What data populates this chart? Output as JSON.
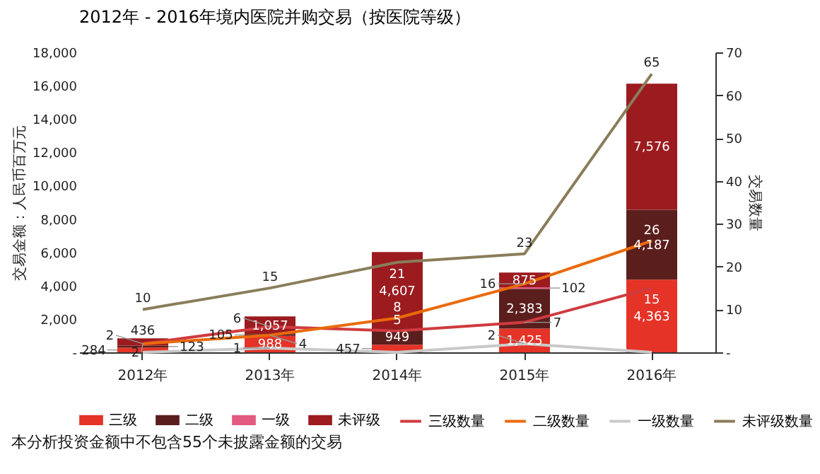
{
  "chart_data": {
    "type": "bar",
    "title": "2012年 - 2016年境内医院并购交易（按医院等级）",
    "ylabel": "交易金额：人民币百万元",
    "y2label": "交易数量",
    "categories": [
      "2012年",
      "2013年",
      "2014年",
      "2015年",
      "2016年"
    ],
    "stacked": true,
    "data_labels": true,
    "legend": "bottom",
    "ylim": [
      0,
      18000
    ],
    "yticks": [
      {
        "value": 0,
        "label": "-"
      },
      {
        "value": 2000,
        "label": "2,000"
      },
      {
        "value": 4000,
        "label": "4,000"
      },
      {
        "value": 6000,
        "label": "6,000"
      },
      {
        "value": 8000,
        "label": "8,000"
      },
      {
        "value": 10000,
        "label": "10,000"
      },
      {
        "value": 12000,
        "label": "12,000"
      },
      {
        "value": 14000,
        "label": "14,000"
      },
      {
        "value": 16000,
        "label": "16,000"
      },
      {
        "value": 18000,
        "label": "18,000"
      }
    ],
    "y2lim": [
      0,
      70
    ],
    "y2ticks": [
      {
        "value": 0,
        "label": "-"
      },
      10,
      20,
      30,
      40,
      50,
      60,
      70
    ],
    "series": [
      {
        "name": "三级",
        "color": "#e53327",
        "values": [
          284,
          988,
          457,
          1425,
          4363
        ],
        "value_labels": [
          "284",
          "988",
          "457",
          "1,425",
          "4,363"
        ]
      },
      {
        "name": "二级",
        "color": "#5a1e1c",
        "values": [
          123,
          105,
          949,
          2383,
          4187
        ],
        "value_labels": [
          "123",
          "105",
          "949",
          "2,383",
          "4,187"
        ]
      },
      {
        "name": "一级",
        "color": "#e15b80",
        "values": [
          null,
          null,
          null,
          102,
          null
        ],
        "value_labels": [
          null,
          null,
          null,
          "102",
          null
        ]
      },
      {
        "name": "未评级",
        "color": "#9b1b1f",
        "values": [
          436,
          1057,
          4607,
          875,
          7576
        ],
        "value_labels": [
          "436",
          "1,057",
          "4,607",
          "875",
          "7,576"
        ]
      },
      {
        "name": "三级数量",
        "type": "line",
        "axis": "y2",
        "color": "#cf3b3f",
        "values": [
          2,
          6,
          5,
          7,
          15
        ]
      },
      {
        "name": "二级数量",
        "type": "line",
        "axis": "y2",
        "color": "#ea6a0c",
        "values": [
          2,
          4,
          8,
          16,
          26
        ]
      },
      {
        "name": "一级数量",
        "type": "line",
        "axis": "y2",
        "color": "#c9c9c9",
        "values": [
          0,
          1,
          0,
          2,
          0
        ],
        "value_labels": [
          null,
          "1",
          null,
          "2",
          null
        ]
      },
      {
        "name": "未评级数量",
        "type": "line",
        "axis": "y2",
        "color": "#8a7d5a",
        "values": [
          10,
          15,
          21,
          23,
          65
        ]
      }
    ],
    "annotations": [
      "本分析投资金额中不包含55个未披露金额的交易"
    ]
  }
}
